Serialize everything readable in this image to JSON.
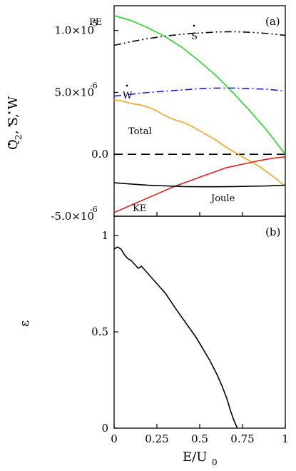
{
  "chart_data": [
    {
      "panel": "(a)",
      "type": "line",
      "ylabel": "Q̇₂, Ṡ, Ẇ",
      "xlim": [
        0,
        1
      ],
      "ylim": [
        -5e-06,
        1.2e-05
      ],
      "y_ticks": [
        {
          "value": 1e-05,
          "label": "1.0×10",
          "exp": "-5"
        },
        {
          "value": 5e-06,
          "label": "5.0×10",
          "exp": "-6"
        },
        {
          "value": 0,
          "label": "0.0",
          "exp": ""
        },
        {
          "value": -5e-06,
          "label": "-5.0×10",
          "exp": "-6"
        }
      ],
      "series": [
        {
          "name": "PE",
          "color": "#22dd22",
          "style": "solid",
          "x": [
            0,
            0.1,
            0.2,
            0.3,
            0.4,
            0.5,
            0.6,
            0.7,
            0.8,
            0.9,
            1.0
          ],
          "values": [
            1.12e-05,
            1.08e-05,
            1.02e-05,
            9.5e-06,
            8.6e-06,
            7.5e-06,
            6.3e-06,
            4.9e-06,
            3.4e-06,
            1.8e-06,
            0
          ]
        },
        {
          "name": "Ṡ",
          "color": "#000000",
          "style": "dashdotdot",
          "x": [
            0,
            0.1,
            0.2,
            0.3,
            0.4,
            0.5,
            0.6,
            0.7,
            0.8,
            0.9,
            1.0
          ],
          "values": [
            8.8e-06,
            9.1e-06,
            9.35e-06,
            9.55e-06,
            9.7e-06,
            9.8e-06,
            9.88e-06,
            9.9e-06,
            9.85e-06,
            9.75e-06,
            9.6e-06
          ]
        },
        {
          "name": "Ẇ",
          "color": "#1a1aee",
          "style": "dashdot",
          "x": [
            0,
            0.1,
            0.2,
            0.3,
            0.4,
            0.5,
            0.6,
            0.7,
            0.8,
            0.9,
            1.0
          ],
          "values": [
            4.7e-06,
            4.85e-06,
            5e-06,
            5.1e-06,
            5.2e-06,
            5.3e-06,
            5.35e-06,
            5.35e-06,
            5.3e-06,
            5.25e-06,
            5.1e-06
          ]
        },
        {
          "name": "Total",
          "color": "#f5a623",
          "style": "solid",
          "x": [
            0,
            0.05,
            0.1,
            0.15,
            0.2,
            0.25,
            0.3,
            0.35,
            0.4,
            0.45,
            0.5,
            0.55,
            0.6,
            0.65,
            0.7,
            0.75,
            0.8,
            0.85,
            0.9,
            0.95,
            1.0
          ],
          "values": [
            4.4e-06,
            4.3e-06,
            4.1e-06,
            4e-06,
            3.8e-06,
            3.5e-06,
            3.1e-06,
            2.8e-06,
            2.6e-06,
            2.3e-06,
            1.9e-06,
            1.5e-06,
            1.1e-06,
            6e-07,
            2e-07,
            -2e-07,
            -6e-07,
            -1e-06,
            -1.5e-06,
            -2e-06,
            -2.6e-06
          ]
        },
        {
          "name": "KE",
          "color": "#e8201a",
          "style": "solid",
          "x": [
            0,
            0.05,
            0.1,
            0.15,
            0.2,
            0.25,
            0.3,
            0.35,
            0.4,
            0.45,
            0.5,
            0.55,
            0.6,
            0.65,
            0.7,
            0.75,
            0.8,
            0.85,
            0.9,
            0.95,
            1.0
          ],
          "values": [
            -4.7e-06,
            -4.4e-06,
            -4.1e-06,
            -3.8e-06,
            -3.5e-06,
            -3.2e-06,
            -2.9e-06,
            -2.6e-06,
            -2.35e-06,
            -2.1e-06,
            -1.85e-06,
            -1.6e-06,
            -1.35e-06,
            -1.1e-06,
            -9.5e-07,
            -8e-07,
            -6.5e-07,
            -5e-07,
            -3.8e-07,
            -2.8e-07,
            -2e-07
          ]
        },
        {
          "name": "Joule",
          "color": "#000000",
          "style": "solid",
          "x": [
            0,
            0.1,
            0.2,
            0.3,
            0.4,
            0.5,
            0.6,
            0.7,
            0.8,
            0.9,
            1.0
          ],
          "values": [
            -2.3e-06,
            -2.4e-06,
            -2.5e-06,
            -2.55e-06,
            -2.6e-06,
            -2.62e-06,
            -2.62e-06,
            -2.6e-06,
            -2.58e-06,
            -2.55e-06,
            -2.5e-06
          ]
        }
      ],
      "reference_line": {
        "y": 0,
        "style": "dashed",
        "color": "#000000"
      },
      "series_labels": {
        "pe": "PE",
        "s": "S",
        "w": "W",
        "total": "Total",
        "ke": "KE",
        "joule": "Joule"
      }
    },
    {
      "panel": "(b)",
      "type": "line",
      "ylabel": "ε",
      "xlabel": "E/U₀",
      "xlim": [
        0,
        1
      ],
      "ylim": [
        0,
        1.1
      ],
      "x_ticks": [
        {
          "value": 0,
          "label": "0"
        },
        {
          "value": 0.25,
          "label": "0.25"
        },
        {
          "value": 0.5,
          "label": "0.5"
        },
        {
          "value": 0.75,
          "label": "0.75"
        },
        {
          "value": 1,
          "label": "1"
        }
      ],
      "y_ticks": [
        {
          "value": 0,
          "label": "0"
        },
        {
          "value": 0.5,
          "label": "0.5"
        },
        {
          "value": 1,
          "label": "1"
        }
      ],
      "series": [
        {
          "name": "",
          "color": "#000000",
          "style": "solid",
          "x": [
            0,
            0.02,
            0.04,
            0.06,
            0.08,
            0.1,
            0.12,
            0.14,
            0.16,
            0.18,
            0.2,
            0.22,
            0.25,
            0.28,
            0.3,
            0.33,
            0.36,
            0.4,
            0.44,
            0.48,
            0.52,
            0.56,
            0.6,
            0.63,
            0.66,
            0.68,
            0.7,
            0.72
          ],
          "values": [
            0.93,
            0.94,
            0.93,
            0.9,
            0.88,
            0.87,
            0.85,
            0.83,
            0.84,
            0.82,
            0.8,
            0.78,
            0.75,
            0.72,
            0.7,
            0.66,
            0.62,
            0.57,
            0.52,
            0.47,
            0.41,
            0.35,
            0.28,
            0.22,
            0.15,
            0.09,
            0.04,
            0.0
          ]
        }
      ]
    }
  ],
  "figure_labels": {
    "ylabel_a": "Q",
    "ylabel_a_sub": "2",
    "ylabel_a_rest": ", S, W",
    "ylabel_b": "ε",
    "xlabel_main": "E/U",
    "xlabel_sub": "0",
    "panel_a": "(a)",
    "panel_b": "(b)"
  }
}
